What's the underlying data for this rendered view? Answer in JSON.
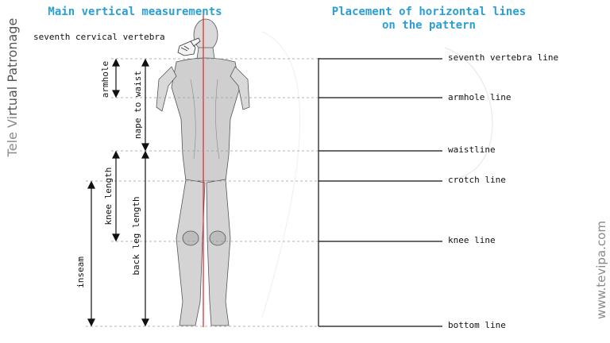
{
  "titles": {
    "left": "Main vertical measurements",
    "right_line1": "Placement of horizontal lines",
    "right_line2": "on the pattern"
  },
  "callout": "seventh cervical vertebra",
  "measurements": {
    "armhole": "armhole",
    "nape_to_waist": "nape to waist",
    "knee_length": "knee length",
    "back_leg_length": "back leg length",
    "inseam": "inseam"
  },
  "pattern_lines": [
    "seventh vertebra line",
    "armhole line",
    "waistline",
    "crotch line",
    "knee line",
    "bottom line"
  ],
  "branding": {
    "left_part1": "Tele Vi",
    "left_part2": "rtual Patronage",
    "right": "www.tevipa.com"
  },
  "colors": {
    "title": "#2a9fd6",
    "center_line": "#e03030",
    "text": "#111111",
    "brand": "#8a8a8a"
  }
}
